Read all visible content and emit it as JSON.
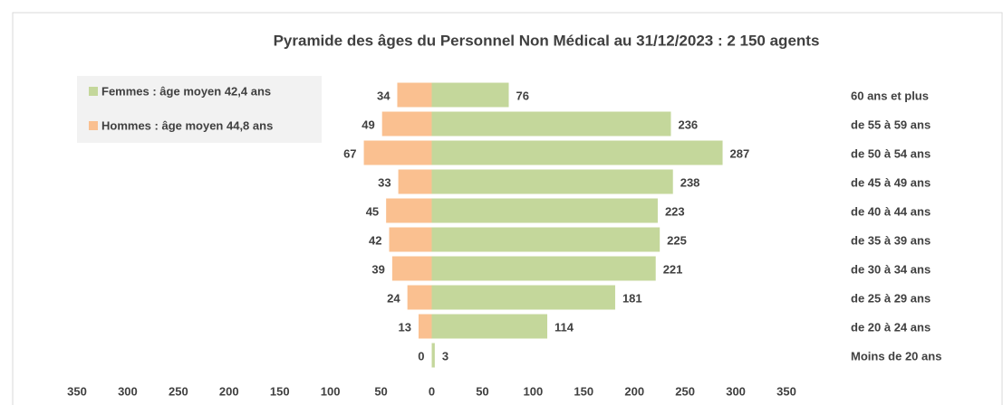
{
  "chart_data": {
    "type": "bar",
    "orientation": "horizontal",
    "title": "Pyramide des âges du Personnel Non Médical au 31/12/2023 : 2 150 agents",
    "categories": [
      "60 ans et plus",
      "de 55 à 59 ans",
      "de 50 à 54 ans",
      "de 45 à 49 ans",
      "de 40 à 44 ans",
      "de 35 à 39 ans",
      "de 30 à 34 ans",
      "de 25 à 29 ans",
      "de 20 à 24 ans",
      "Moins de 20 ans"
    ],
    "series": [
      {
        "name": "Femmes : âge moyen 42,4 ans",
        "color": "#c4d79b",
        "values": [
          76,
          236,
          287,
          238,
          223,
          225,
          221,
          181,
          114,
          3
        ]
      },
      {
        "name": "Hommes : âge moyen 44,8 ans",
        "color": "#fac090",
        "values": [
          -34,
          -49,
          -67,
          -33,
          -45,
          -42,
          -39,
          -24,
          -13,
          0
        ],
        "value_labels": [
          "34",
          "49",
          "67",
          "33",
          "45",
          "42",
          "39",
          "24",
          "13",
          "0"
        ]
      }
    ],
    "xlim": [
      -350,
      350
    ],
    "xticks": [
      {
        "value": -350,
        "label": "350"
      },
      {
        "value": -300,
        "label": "300"
      },
      {
        "value": -250,
        "label": "250"
      },
      {
        "value": -200,
        "label": "200"
      },
      {
        "value": -150,
        "label": "150"
      },
      {
        "value": -100,
        "label": "100"
      },
      {
        "value": -50,
        "label": "50"
      },
      0,
      50,
      100,
      150,
      200,
      250,
      300,
      350
    ],
    "legend": "top-left"
  }
}
